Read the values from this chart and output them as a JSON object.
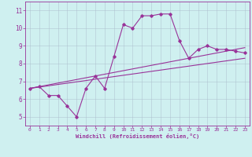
{
  "xlabel": "Windchill (Refroidissement éolien,°C)",
  "xlim": [
    -0.5,
    23.5
  ],
  "ylim": [
    4.5,
    11.5
  ],
  "yticks": [
    5,
    6,
    7,
    8,
    9,
    10,
    11
  ],
  "xticks": [
    0,
    1,
    2,
    3,
    4,
    5,
    6,
    7,
    8,
    9,
    10,
    11,
    12,
    13,
    14,
    15,
    16,
    17,
    18,
    19,
    20,
    21,
    22,
    23
  ],
  "bg_color": "#cff0f0",
  "line_color": "#993399",
  "grid_color": "#aabbcc",
  "curve_x": [
    0,
    1,
    2,
    3,
    4,
    5,
    6,
    7,
    8,
    9,
    10,
    11,
    12,
    13,
    14,
    15,
    16,
    17,
    18,
    19,
    20,
    21,
    22,
    23
  ],
  "curve_y": [
    6.6,
    6.7,
    6.2,
    6.2,
    5.6,
    5.0,
    6.6,
    7.3,
    6.6,
    8.4,
    10.2,
    10.0,
    10.7,
    10.7,
    10.8,
    10.8,
    9.3,
    8.3,
    8.8,
    9.0,
    8.8,
    8.8,
    8.7,
    8.6
  ],
  "line1_x": [
    0,
    23
  ],
  "line1_y": [
    6.6,
    8.9
  ],
  "line2_x": [
    0,
    23
  ],
  "line2_y": [
    6.6,
    8.3
  ]
}
